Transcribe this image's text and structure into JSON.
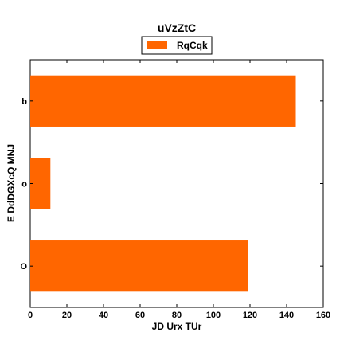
{
  "chart_data": {
    "type": "bar",
    "orientation": "horizontal",
    "title": "uVzZtC",
    "xlabel": "JD   Urx TUr",
    "ylabel": "E DdDGXcQ  MNJ",
    "categories": [
      "O",
      "o",
      "b"
    ],
    "series": [
      {
        "name": "RqCqk",
        "values": [
          119,
          11,
          145
        ],
        "color": "#ff6600"
      }
    ],
    "xlim": [
      0,
      160
    ],
    "xticks": [
      0,
      20,
      40,
      60,
      80,
      100,
      120,
      140,
      160
    ],
    "grid": false,
    "legend_position": "top-center"
  }
}
